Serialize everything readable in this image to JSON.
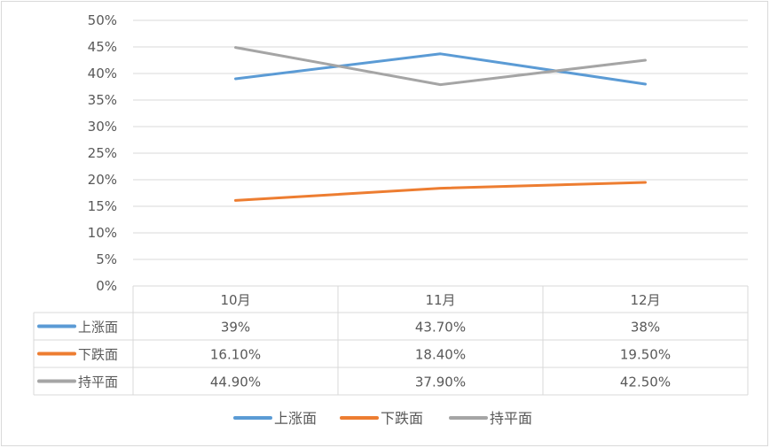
{
  "chart_data": {
    "type": "line",
    "title": "",
    "xlabel": "",
    "ylabel": "",
    "categories": [
      "10月",
      "11月",
      "12月"
    ],
    "y_ticks": [
      "0%",
      "5%",
      "10%",
      "15%",
      "20%",
      "25%",
      "30%",
      "35%",
      "40%",
      "45%",
      "50%"
    ],
    "ylim": [
      0,
      50
    ],
    "grid": true,
    "legend_position": "bottom",
    "series": [
      {
        "name": "上涨面",
        "color": "#5b9bd5",
        "values": [
          39,
          43.7,
          38
        ],
        "labels": [
          "39%",
          "43.70%",
          "38%"
        ]
      },
      {
        "name": "下跌面",
        "color": "#ed7d31",
        "values": [
          16.1,
          18.4,
          19.5
        ],
        "labels": [
          "16.10%",
          "18.40%",
          "19.50%"
        ]
      },
      {
        "name": "持平面",
        "color": "#a5a5a5",
        "values": [
          44.9,
          37.9,
          42.5
        ],
        "labels": [
          "44.90%",
          "37.90%",
          "42.50%"
        ]
      }
    ]
  }
}
